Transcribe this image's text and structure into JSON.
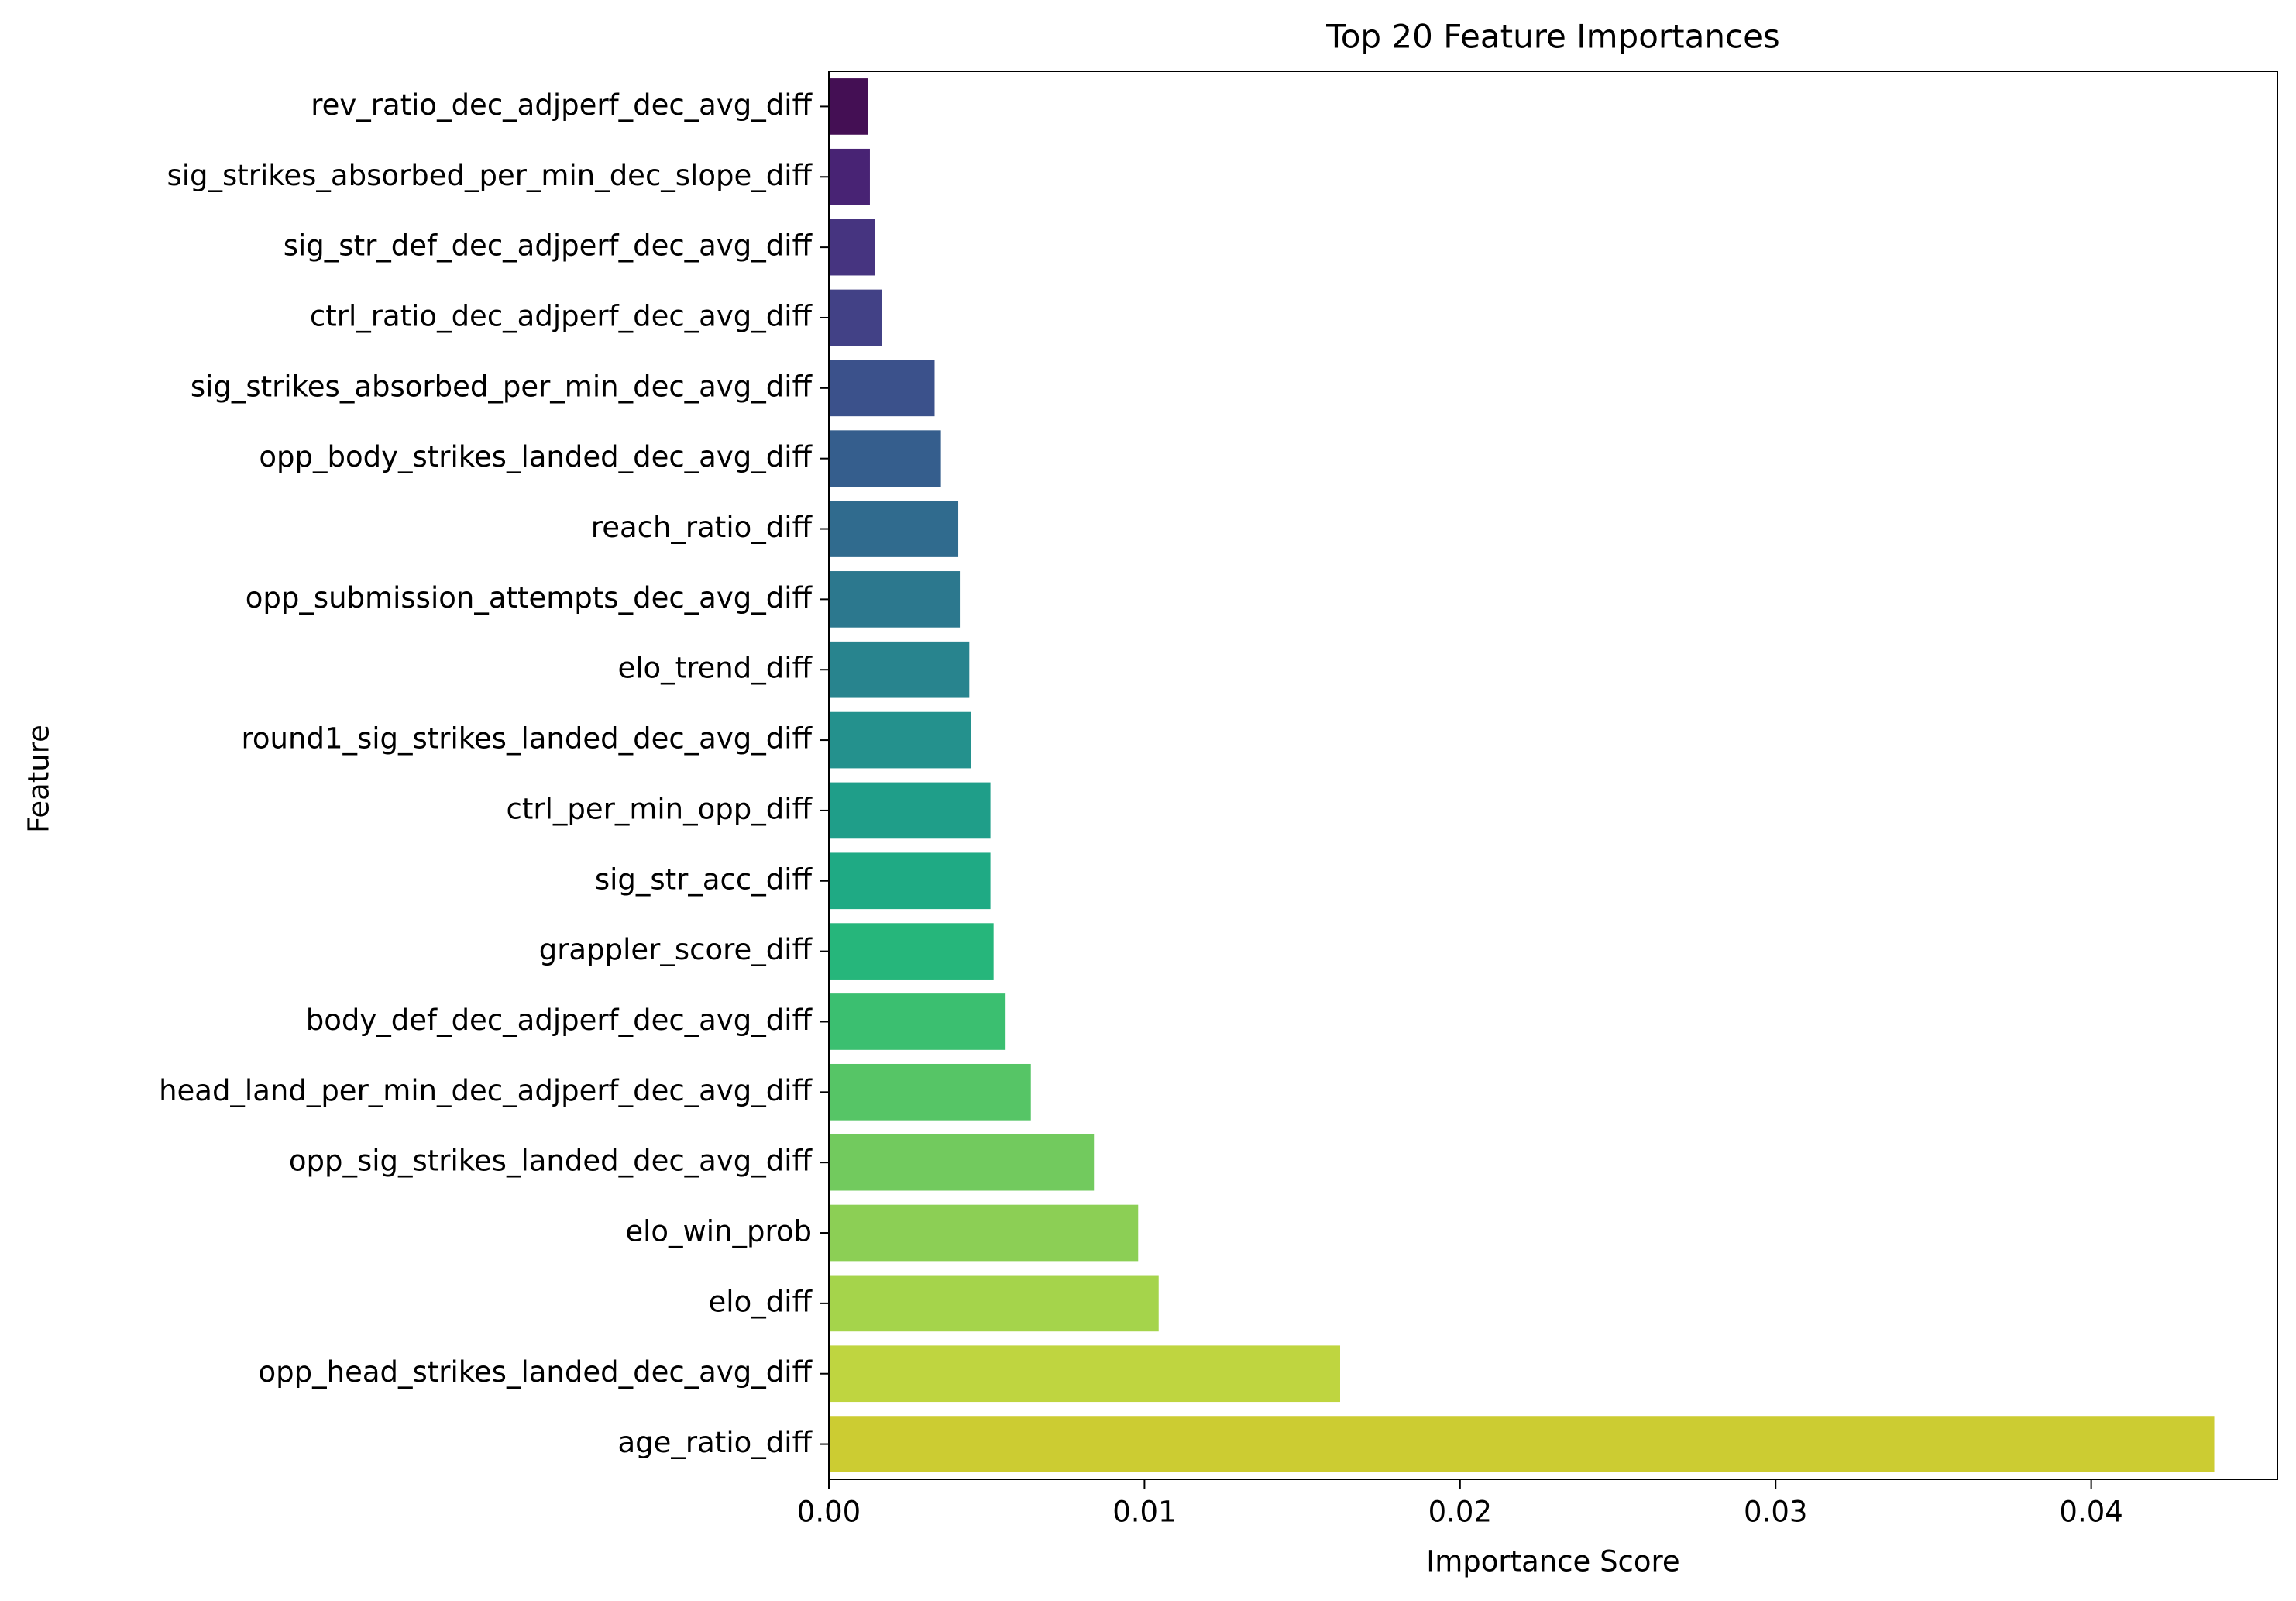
{
  "chart_data": {
    "type": "bar",
    "orientation": "horizontal",
    "title": "Top 20 Feature Importances",
    "xlabel": "Importance Score",
    "ylabel": "Feature",
    "xlim": [
      0.0,
      0.0459
    ],
    "xticks": [
      0.0,
      0.01,
      0.02,
      0.03,
      0.04
    ],
    "xtick_labels": [
      "0.00",
      "0.01",
      "0.02",
      "0.03",
      "0.04"
    ],
    "grid": false,
    "legend": "none",
    "colormap": "viridis",
    "categories": [
      "rev_ratio_dec_adjperf_dec_avg_diff",
      "sig_strikes_absorbed_per_min_dec_slope_diff",
      "sig_str_def_dec_adjperf_dec_avg_diff",
      "ctrl_ratio_dec_adjperf_dec_avg_diff",
      "sig_strikes_absorbed_per_min_dec_avg_diff",
      "opp_body_strikes_landed_dec_avg_diff",
      "reach_ratio_diff",
      "opp_submission_attempts_dec_avg_diff",
      "elo_trend_diff",
      "round1_sig_strikes_landed_dec_avg_diff",
      "ctrl_per_min_opp_diff",
      "sig_str_acc_diff",
      "grappler_score_diff",
      "body_def_dec_adjperf_dec_avg_diff",
      "head_land_per_min_dec_adjperf_dec_avg_diff",
      "opp_sig_strikes_landed_dec_avg_diff",
      "elo_win_prob",
      "elo_diff",
      "opp_head_strikes_landed_dec_avg_diff",
      "age_ratio_diff"
    ],
    "values": [
      0.00125,
      0.0013,
      0.00145,
      0.00168,
      0.00335,
      0.00355,
      0.0041,
      0.00415,
      0.00445,
      0.0045,
      0.00512,
      0.00512,
      0.00522,
      0.0056,
      0.0064,
      0.0084,
      0.0098,
      0.01045,
      0.0162,
      0.0439
    ],
    "colors": [
      "#440f54",
      "#482374",
      "#463480",
      "#424186",
      "#3b518b",
      "#355e8d",
      "#306b8e",
      "#2c788e",
      "#28848e",
      "#24918d",
      "#1f9e89",
      "#1faa84",
      "#26b67b",
      "#3bbf70",
      "#56c566",
      "#72ca5e",
      "#8ccf55",
      "#a5d44b",
      "#bfd540",
      "#cccc32"
    ]
  }
}
